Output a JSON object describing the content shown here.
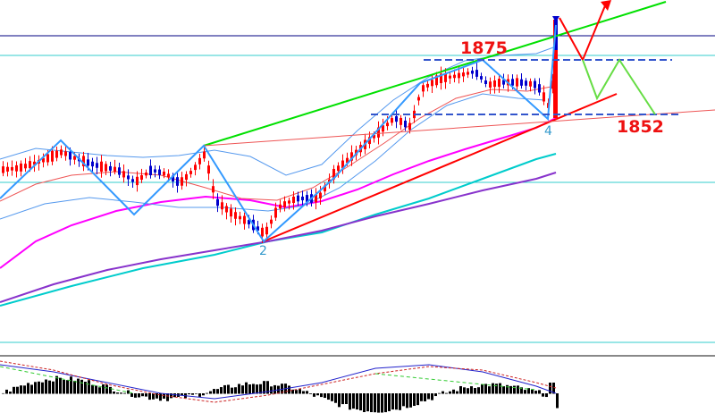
{
  "chart_data": {
    "type": "candlestick",
    "instrument": "",
    "annotations": {
      "resistance_label": "1875",
      "support_label": "1852",
      "wave_label_2": "2",
      "wave_label_4": "4"
    },
    "levels": {
      "resistance": 1875,
      "support": 1852
    },
    "colors": {
      "bull_candle": "#ff0000",
      "bear_candle": "#0000cc",
      "upper_trend": "#00e000",
      "lower_trend": "#ff0000",
      "zigzag": "#3399ff",
      "ma_magenta": "#ff00ff",
      "ma_cyan": "#00cccc",
      "ma_purple": "#8833cc",
      "horizontal_level": "#000080",
      "dashed_level": "#3355cc",
      "projection_up": "#ff0000",
      "projection_alt": "#66dd44",
      "label_red": "#ee1111",
      "label_blue": "#3399cc"
    },
    "indicator_panel": {
      "type": "macd-histogram",
      "bull_bar": "#ff0000",
      "bear_bar": "#00aa00"
    }
  }
}
